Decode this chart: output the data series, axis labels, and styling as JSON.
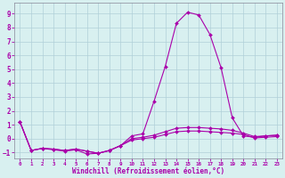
{
  "xlabel": "Windchill (Refroidissement éolien,°C)",
  "background_color": "#d8f0f0",
  "grid_color": "#b0d0d8",
  "line_color": "#aa00aa",
  "x_data": [
    0,
    1,
    2,
    3,
    4,
    5,
    6,
    7,
    8,
    9,
    10,
    11,
    12,
    13,
    14,
    15,
    16,
    17,
    18,
    19,
    20,
    21,
    22,
    23
  ],
  "line1": [
    1.2,
    -0.85,
    -0.7,
    -0.8,
    -0.9,
    -0.8,
    -1.1,
    -1.05,
    -0.85,
    -0.5,
    0.2,
    0.35,
    2.7,
    5.2,
    8.3,
    9.1,
    8.9,
    7.5,
    5.1,
    1.5,
    0.2,
    0.1,
    0.2,
    0.25
  ],
  "line2": [
    1.2,
    -0.85,
    -0.7,
    -0.75,
    -0.85,
    -0.75,
    -0.9,
    -1.05,
    -0.85,
    -0.5,
    0.0,
    0.1,
    0.25,
    0.5,
    0.75,
    0.8,
    0.8,
    0.75,
    0.7,
    0.6,
    0.4,
    0.15,
    0.2,
    0.25
  ],
  "line3": [
    1.2,
    -0.85,
    -0.7,
    -0.75,
    -0.85,
    -0.75,
    -0.9,
    -1.05,
    -0.85,
    -0.5,
    -0.1,
    0.0,
    0.1,
    0.3,
    0.5,
    0.55,
    0.55,
    0.5,
    0.45,
    0.4,
    0.3,
    0.05,
    0.1,
    0.15
  ],
  "ylim": [
    -1.4,
    9.8
  ],
  "xlim": [
    -0.5,
    23.5
  ],
  "yticks": [
    -1,
    0,
    1,
    2,
    3,
    4,
    5,
    6,
    7,
    8,
    9
  ],
  "xtick_labels": [
    "0",
    "1",
    "2",
    "3",
    "4",
    "5",
    "6",
    "7",
    "8",
    "9",
    "10",
    "11",
    "12",
    "13",
    "14",
    "15",
    "16",
    "17",
    "18",
    "19",
    "20",
    "21",
    "22",
    "23"
  ]
}
